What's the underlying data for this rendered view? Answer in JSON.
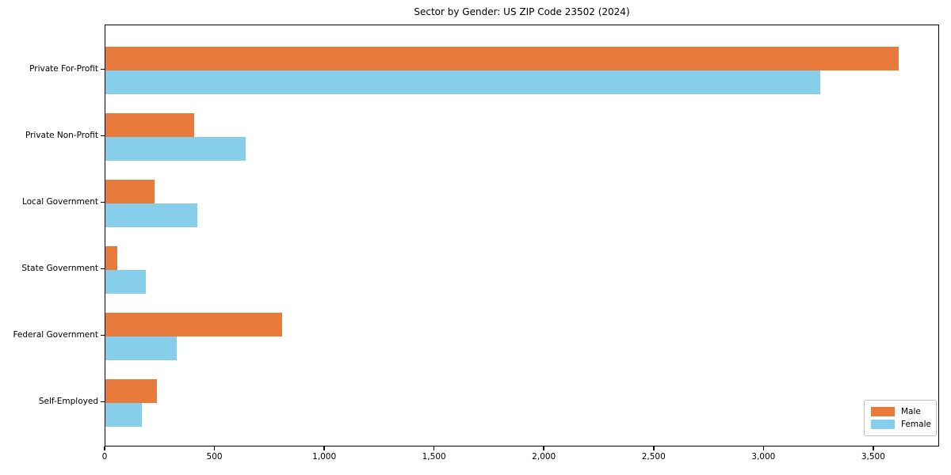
{
  "title": "Sector by Gender: US ZIP Code 23502 (2024)",
  "chart_data": {
    "type": "bar",
    "orientation": "horizontal",
    "title": "Sector by Gender: US ZIP Code 23502 (2024)",
    "categories": [
      "Private For-Profit",
      "Private Non-Profit",
      "Local Government",
      "State Government",
      "Federal Government",
      "Self-Employed"
    ],
    "series": [
      {
        "name": "Male",
        "color": "#E87A3C",
        "values": [
          3620,
          405,
          225,
          55,
          805,
          235
        ]
      },
      {
        "name": "Female",
        "color": "#87CEEB",
        "values": [
          3260,
          640,
          420,
          185,
          325,
          165
        ]
      }
    ],
    "xlabel": "",
    "ylabel": "",
    "xlim": [
      0,
      3800
    ],
    "x_ticks": [
      0,
      500,
      1000,
      1500,
      2000,
      2500,
      3000,
      3500
    ],
    "x_tick_labels": [
      "0",
      "500",
      "1,000",
      "1,500",
      "2,000",
      "2,500",
      "3,000",
      "3,500"
    ],
    "grid": false,
    "legend_position": "lower-right"
  },
  "legend": {
    "items": [
      {
        "label": "Male",
        "color": "#E87A3C"
      },
      {
        "label": "Female",
        "color": "#87CEEB"
      }
    ]
  }
}
